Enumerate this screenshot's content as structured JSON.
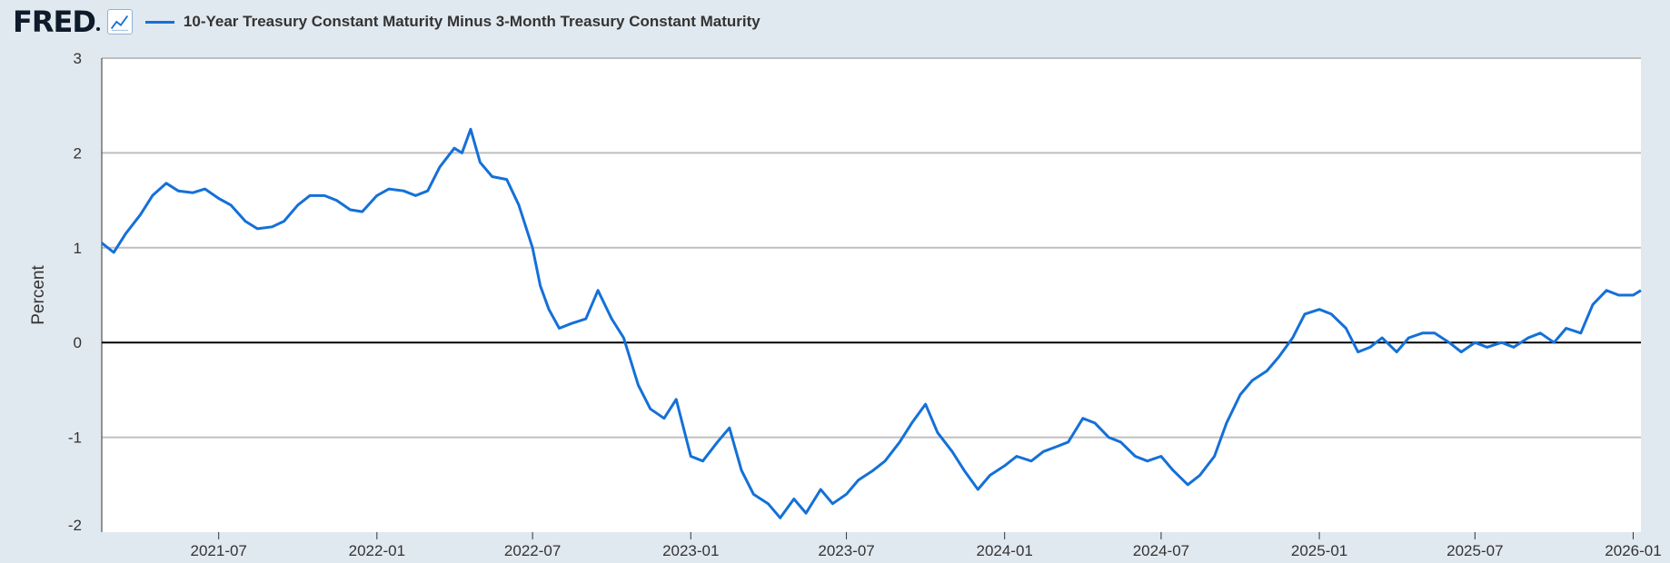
{
  "header": {
    "logo_text": "FRED",
    "series_title": "10-Year Treasury Constant Maturity Minus 3-Month Treasury Constant Maturity"
  },
  "colors": {
    "series": "#1470d8",
    "background": "#e1e9f0",
    "plot_background": "#ffffff",
    "zero_line": "#000000",
    "grid": "#bfbfbf"
  },
  "icons": {
    "graph": "line-graph-icon"
  },
  "chart_data": {
    "type": "line",
    "title": "",
    "xlabel": "",
    "ylabel": "Percent",
    "ylim": [
      -2,
      3
    ],
    "yticks": [
      "3",
      "2",
      "1",
      "0",
      "-1",
      "-2"
    ],
    "xlim": [
      "2021-02-15",
      "2026-01-10"
    ],
    "xticks": [
      "2021-07",
      "2022-01",
      "2022-07",
      "2023-01",
      "2023-07",
      "2024-01",
      "2024-07",
      "2025-01",
      "2025-07",
      "2026-01"
    ],
    "grid": true,
    "zero_line": true,
    "series": [
      {
        "x": [
          "2021-02-15",
          "2021-03-01",
          "2021-03-15",
          "2021-04-01",
          "2021-04-15",
          "2021-05-01",
          "2021-05-15",
          "2021-06-01",
          "2021-06-15",
          "2021-07-01",
          "2021-07-15",
          "2021-08-01",
          "2021-08-15",
          "2021-09-01",
          "2021-09-15",
          "2021-10-01",
          "2021-10-15",
          "2021-11-01",
          "2021-11-15",
          "2021-12-01",
          "2021-12-15",
          "2022-01-01",
          "2022-01-15",
          "2022-02-01",
          "2022-02-15",
          "2022-03-01",
          "2022-03-15",
          "2022-04-01",
          "2022-04-10",
          "2022-04-20",
          "2022-05-01",
          "2022-05-15",
          "2022-06-01",
          "2022-06-15",
          "2022-07-01",
          "2022-07-10",
          "2022-07-20",
          "2022-08-01",
          "2022-08-15",
          "2022-09-01",
          "2022-09-15",
          "2022-10-01",
          "2022-10-15",
          "2022-11-01",
          "2022-11-15",
          "2022-12-01",
          "2022-12-15",
          "2023-01-01",
          "2023-01-15",
          "2023-02-01",
          "2023-02-15",
          "2023-03-01",
          "2023-03-15",
          "2023-04-01",
          "2023-04-15",
          "2023-05-01",
          "2023-05-15",
          "2023-06-01",
          "2023-06-15",
          "2023-07-01",
          "2023-07-15",
          "2023-08-01",
          "2023-08-15",
          "2023-09-01",
          "2023-09-15",
          "2023-10-01",
          "2023-10-15",
          "2023-11-01",
          "2023-11-15",
          "2023-12-01",
          "2023-12-15",
          "2024-01-01",
          "2024-01-15",
          "2024-02-01",
          "2024-02-15",
          "2024-03-01",
          "2024-03-15",
          "2024-04-01",
          "2024-04-15",
          "2024-05-01",
          "2024-05-15",
          "2024-06-01",
          "2024-06-15",
          "2024-07-01",
          "2024-07-15",
          "2024-08-01",
          "2024-08-15",
          "2024-09-01",
          "2024-09-15",
          "2024-10-01",
          "2024-10-15",
          "2024-11-01",
          "2024-11-15",
          "2024-12-01",
          "2024-12-15",
          "2025-01-01",
          "2025-01-15",
          "2025-02-01",
          "2025-02-15",
          "2025-03-01",
          "2025-03-15",
          "2025-04-01",
          "2025-04-15",
          "2025-05-01",
          "2025-05-15",
          "2025-06-01",
          "2025-06-15",
          "2025-07-01",
          "2025-07-15",
          "2025-08-01",
          "2025-08-15",
          "2025-09-01",
          "2025-09-15",
          "2025-10-01",
          "2025-10-15",
          "2025-11-01",
          "2025-11-15",
          "2025-12-01",
          "2025-12-15",
          "2026-01-01",
          "2026-01-10"
        ],
        "y": [
          1.05,
          0.95,
          1.15,
          1.35,
          1.55,
          1.68,
          1.6,
          1.58,
          1.62,
          1.52,
          1.45,
          1.28,
          1.2,
          1.22,
          1.28,
          1.45,
          1.55,
          1.55,
          1.5,
          1.4,
          1.38,
          1.55,
          1.62,
          1.6,
          1.55,
          1.6,
          1.85,
          2.05,
          2.0,
          2.25,
          1.9,
          1.75,
          1.72,
          1.45,
          1.0,
          0.6,
          0.35,
          0.15,
          0.2,
          0.25,
          0.55,
          0.25,
          0.05,
          -0.45,
          -0.7,
          -0.8,
          -0.6,
          -1.2,
          -1.25,
          -1.05,
          -0.9,
          -1.35,
          -1.6,
          -1.7,
          -1.85,
          -1.65,
          -1.8,
          -1.55,
          -1.7,
          -1.6,
          -1.45,
          -1.35,
          -1.25,
          -1.05,
          -0.85,
          -0.65,
          -0.95,
          -1.15,
          -1.35,
          -1.55,
          -1.4,
          -1.3,
          -1.2,
          -1.25,
          -1.15,
          -1.1,
          -1.05,
          -0.8,
          -0.85,
          -1.0,
          -1.05,
          -1.2,
          -1.25,
          -1.2,
          -1.35,
          -1.5,
          -1.4,
          -1.2,
          -0.85,
          -0.55,
          -0.4,
          -0.3,
          -0.15,
          0.05,
          0.3,
          0.35,
          0.3,
          0.15,
          -0.1,
          -0.05,
          0.05,
          -0.1,
          0.05,
          0.1,
          0.1,
          0.0,
          -0.1,
          0.0,
          -0.05,
          0.0,
          -0.05,
          0.05,
          0.1,
          0.0,
          0.15,
          0.1,
          0.4,
          0.55,
          0.5,
          0.5,
          0.55
        ]
      }
    ]
  }
}
